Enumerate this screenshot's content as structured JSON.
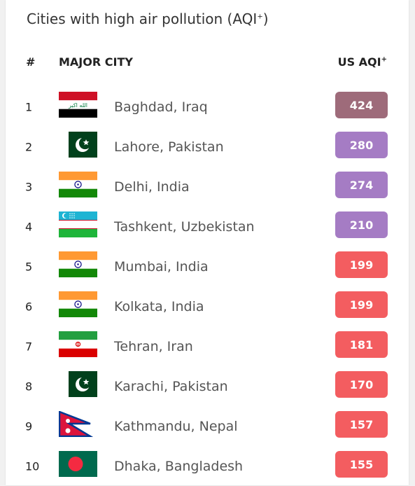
{
  "header": {
    "title": "Cities with high air pollution (AQI",
    "title_sup": "+",
    "title_end": ")",
    "col_rank": "#",
    "col_city": "MAJOR CITY",
    "col_aqi": "US AQI",
    "col_aqi_sup": "+"
  },
  "colors": {
    "hazardous": "#9e6b7a",
    "very_unhealthy": "#a57cc4",
    "unhealthy": "#f35d60"
  },
  "rows": [
    {
      "rank": "1",
      "city": "Baghdad, Iraq",
      "aqi": "424",
      "aqi_color": "#9e6b7a",
      "flag": "iraq-flag-icon"
    },
    {
      "rank": "2",
      "city": "Lahore, Pakistan",
      "aqi": "280",
      "aqi_color": "#a57cc4",
      "flag": "pakistan-flag-icon"
    },
    {
      "rank": "3",
      "city": "Delhi, India",
      "aqi": "274",
      "aqi_color": "#a57cc4",
      "flag": "india-flag-icon"
    },
    {
      "rank": "4",
      "city": "Tashkent, Uzbekistan",
      "aqi": "210",
      "aqi_color": "#a57cc4",
      "flag": "uzbekistan-flag-icon"
    },
    {
      "rank": "5",
      "city": "Mumbai, India",
      "aqi": "199",
      "aqi_color": "#f35d60",
      "flag": "india-flag-icon"
    },
    {
      "rank": "6",
      "city": "Kolkata, India",
      "aqi": "199",
      "aqi_color": "#f35d60",
      "flag": "india-flag-icon"
    },
    {
      "rank": "7",
      "city": "Tehran, Iran",
      "aqi": "181",
      "aqi_color": "#f35d60",
      "flag": "iran-flag-icon"
    },
    {
      "rank": "8",
      "city": "Karachi, Pakistan",
      "aqi": "170",
      "aqi_color": "#f35d60",
      "flag": "pakistan-flag-icon"
    },
    {
      "rank": "9",
      "city": "Kathmandu, Nepal",
      "aqi": "157",
      "aqi_color": "#f35d60",
      "flag": "nepal-flag-icon"
    },
    {
      "rank": "10",
      "city": "Dhaka, Bangladesh",
      "aqi": "155",
      "aqi_color": "#f35d60",
      "flag": "bangladesh-flag-icon"
    }
  ]
}
